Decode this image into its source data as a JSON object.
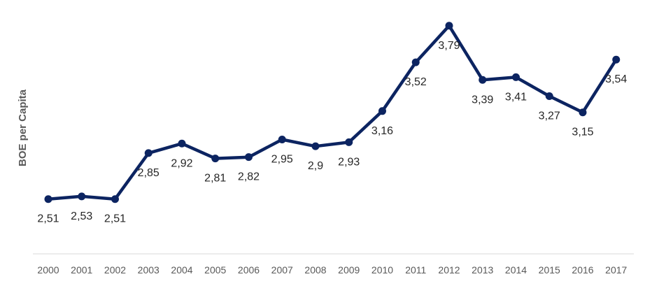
{
  "chart_data": {
    "type": "line",
    "title": "",
    "xlabel": "",
    "ylabel": "BOE per Capita",
    "ylim": [
      1.9,
      4.0
    ],
    "grid": false,
    "legend": "none",
    "x": [
      "2000",
      "2001",
      "2002",
      "2003",
      "2004",
      "2005",
      "2006",
      "2007",
      "2008",
      "2009",
      "2010",
      "2011",
      "2012",
      "2013",
      "2014",
      "2015",
      "2016",
      "2017"
    ],
    "series": [
      {
        "name": "",
        "color": "#0c2461",
        "values": [
          2.51,
          2.53,
          2.51,
          2.85,
          2.92,
          2.81,
          2.82,
          2.95,
          2.9,
          2.93,
          3.16,
          3.52,
          3.79,
          3.39,
          3.41,
          3.27,
          3.15,
          3.54
        ],
        "labels": [
          "2,51",
          "2,53",
          "2,51",
          "2,85",
          "2,92",
          "2,81",
          "2,82",
          "2,95",
          "2,9",
          "2,93",
          "3,16",
          "3,52",
          "3,79",
          "3,39",
          "3,41",
          "3,27",
          "3,15",
          "3,54"
        ]
      }
    ]
  }
}
